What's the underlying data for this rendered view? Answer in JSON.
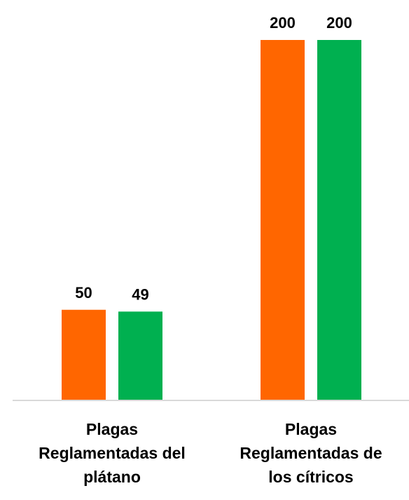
{
  "chart_data": {
    "type": "bar",
    "categories": [
      [
        "Plagas",
        "Reglamentadas del",
        "plátano"
      ],
      [
        "Plagas",
        "Reglamentadas de",
        "los cítricos"
      ]
    ],
    "series": [
      {
        "values": [
          50,
          200
        ],
        "color": "#FF6600"
      },
      {
        "values": [
          49,
          200
        ],
        "color": "#00B050"
      }
    ],
    "ylim": [
      0,
      200
    ],
    "grid": false,
    "data_labels": true,
    "axis_color": "#D9D9D9"
  }
}
